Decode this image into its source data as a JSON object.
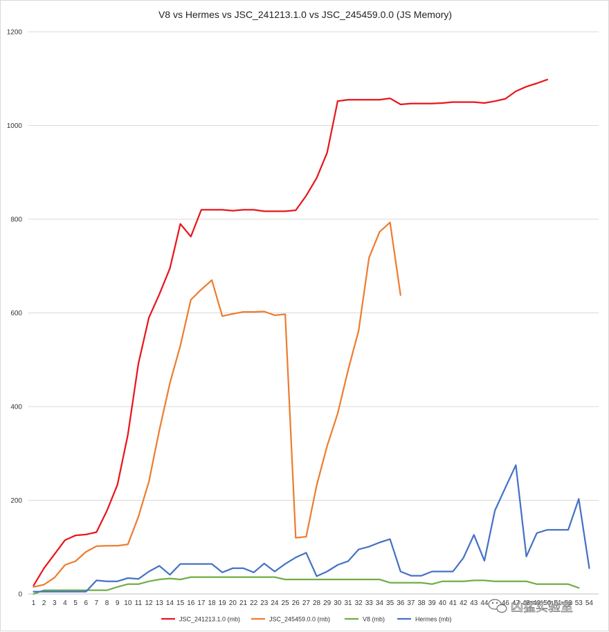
{
  "chart_data": {
    "type": "line",
    "title": "V8 vs Hermes vs  JSC_241213.1.0 vs JSC_245459.0.0  (JS Memory)",
    "xlabel": "",
    "ylabel": "",
    "ylim": [
      0,
      1200
    ],
    "yticks": [
      0,
      200,
      400,
      600,
      800,
      1000,
      1200
    ],
    "grid": true,
    "legend_position": "bottom",
    "x": [
      1,
      2,
      3,
      4,
      5,
      6,
      7,
      8,
      9,
      10,
      11,
      12,
      13,
      14,
      15,
      16,
      17,
      18,
      19,
      20,
      21,
      22,
      23,
      24,
      25,
      26,
      27,
      28,
      29,
      30,
      31,
      32,
      33,
      34,
      35,
      36,
      37,
      38,
      39,
      40,
      41,
      42,
      43,
      44,
      45,
      46,
      47,
      48,
      49,
      50,
      51,
      52,
      53,
      54
    ],
    "series": [
      {
        "name": "JSC_241213.1.0 (mb)",
        "color": "#e8151b",
        "values": [
          18,
          55,
          85,
          115,
          125,
          127,
          132,
          178,
          233,
          340,
          492,
          590,
          640,
          695,
          790,
          763,
          820,
          820,
          820,
          818,
          820,
          820,
          817,
          817,
          817,
          819,
          850,
          888,
          942,
          1052,
          1055,
          1055,
          1055,
          1055,
          1058,
          1045,
          1047,
          1047,
          1047,
          1048,
          1050,
          1050,
          1050,
          1048,
          1052,
          1057,
          1073,
          1083,
          1090,
          1098,
          null,
          null,
          null,
          null
        ]
      },
      {
        "name": "JSC_245459.0.0 (mb)",
        "color": "#ed7d31",
        "values": [
          15,
          20,
          35,
          62,
          70,
          90,
          102,
          103,
          103,
          106,
          165,
          240,
          350,
          450,
          530,
          628,
          650,
          670,
          593,
          598,
          602,
          602,
          603,
          595,
          597,
          120,
          122,
          232,
          316,
          385,
          478,
          562,
          718,
          773,
          793,
          638,
          null,
          null,
          null,
          null,
          null,
          null,
          null,
          null,
          null,
          null,
          null,
          null,
          null,
          null,
          null,
          null,
          null,
          null
        ]
      },
      {
        "name": "V8 (mb)",
        "color": "#70ad47",
        "values": [
          0,
          8,
          8,
          8,
          8,
          8,
          8,
          8,
          15,
          21,
          21,
          27,
          31,
          33,
          31,
          36,
          36,
          36,
          36,
          36,
          36,
          36,
          36,
          36,
          31,
          31,
          31,
          31,
          31,
          31,
          31,
          31,
          31,
          31,
          24,
          24,
          24,
          24,
          21,
          27,
          27,
          27,
          29,
          29,
          27,
          27,
          27,
          27,
          21,
          21,
          21,
          21,
          13,
          null
        ]
      },
      {
        "name": "Hermes (mb)",
        "color": "#4472c4",
        "values": [
          5,
          5,
          5,
          5,
          5,
          5,
          29,
          27,
          27,
          34,
          32,
          48,
          60,
          41,
          64,
          64,
          64,
          64,
          46,
          55,
          55,
          46,
          65,
          48,
          64,
          78,
          88,
          38,
          48,
          62,
          70,
          95,
          101,
          110,
          117,
          48,
          39,
          39,
          48,
          48,
          48,
          77,
          126,
          71,
          178,
          227,
          275,
          80,
          130,
          137,
          137,
          137,
          203,
          55
        ]
      }
    ]
  },
  "watermark": {
    "text": "凶猛实验室",
    "icon": "wechat-icon"
  }
}
